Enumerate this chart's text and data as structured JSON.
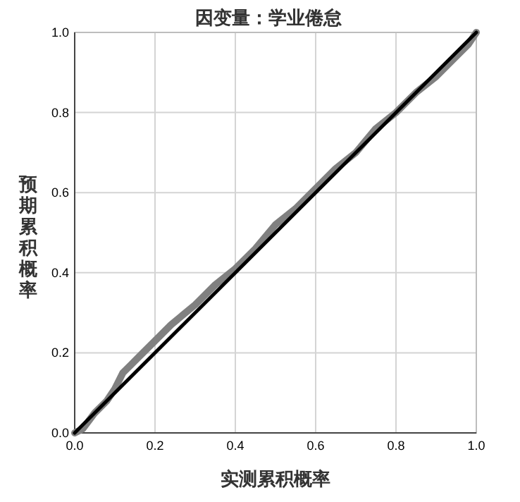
{
  "chart_data": {
    "type": "line",
    "title": "因变量：学业倦怠",
    "xlabel": "实测累积概率",
    "ylabel": "预期累积概率",
    "series": [
      {
        "color": "#808080",
        "x": [
          0,
          0.02,
          0.05,
          0.08,
          0.1,
          0.12,
          0.14,
          0.17,
          0.2,
          0.24,
          0.3,
          0.35,
          0.4,
          0.45,
          0.5,
          0.55,
          0.6,
          0.65,
          0.7,
          0.75,
          0.8,
          0.85,
          0.9,
          0.95,
          0.98,
          1
        ],
        "values": [
          0,
          0.01,
          0.05,
          0.08,
          0.11,
          0.15,
          0.17,
          0.2,
          0.23,
          0.27,
          0.32,
          0.37,
          0.41,
          0.46,
          0.52,
          0.56,
          0.61,
          0.66,
          0.7,
          0.76,
          0.8,
          0.85,
          0.89,
          0.94,
          0.97,
          1
        ]
      },
      {
        "color": "#000000",
        "x": [
          0,
          1
        ],
        "values": [
          0,
          1
        ]
      }
    ],
    "xlim": [
      0,
      1
    ],
    "ylim": [
      0,
      1
    ],
    "xticks": [
      {
        "value": 0,
        "label": "0.0"
      },
      0.2,
      0.4,
      0.6,
      0.8,
      {
        "value": 1,
        "label": "1.0"
      }
    ],
    "yticks": [
      {
        "value": 0,
        "label": "0.0"
      },
      0.2,
      0.4,
      0.6,
      0.8,
      {
        "value": 1,
        "label": "1.0"
      }
    ],
    "grid": true
  }
}
